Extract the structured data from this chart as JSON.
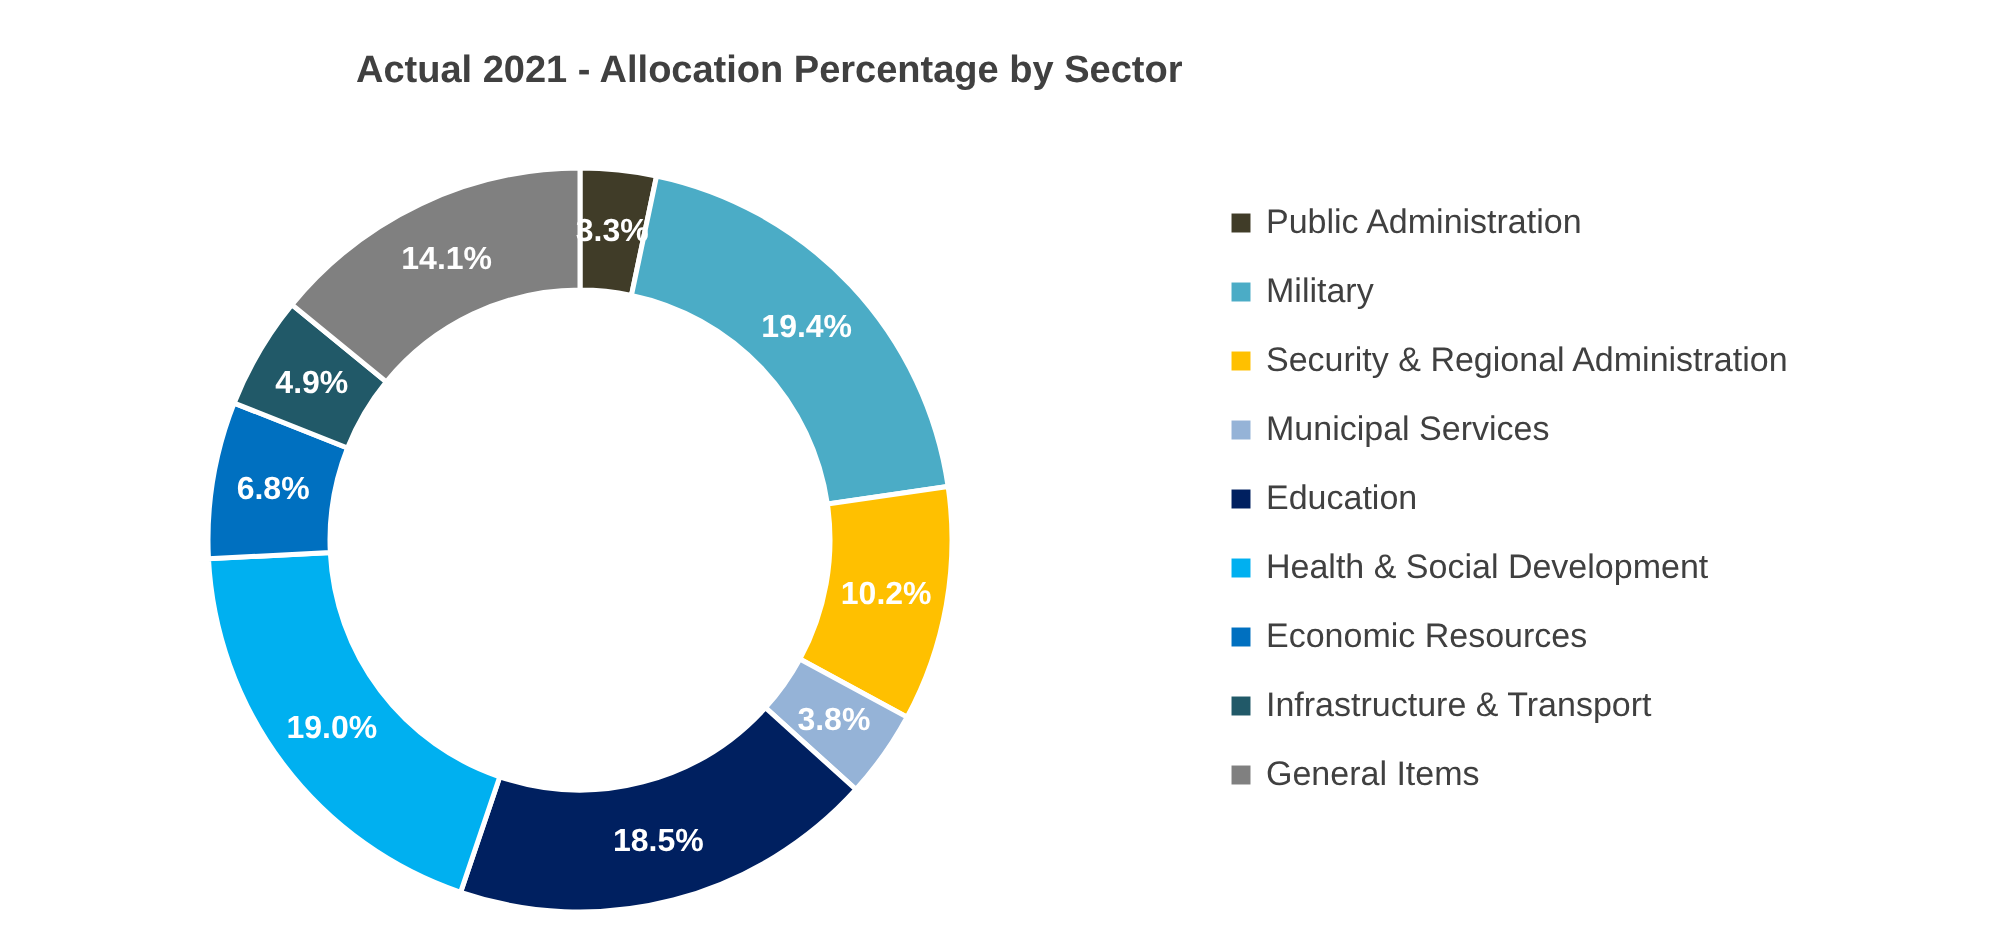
{
  "chart_data": {
    "type": "donut",
    "title": "Actual 2021 - Allocation Percentage by Sector",
    "categories": [
      "Public Administration",
      "Military",
      "Security & Regional Administration",
      "Municipal Services",
      "Education",
      "Health & Social Development",
      "Economic Resources",
      "Infrastructure & Transport",
      "General Items"
    ],
    "values": [
      3.3,
      19.4,
      10.2,
      3.8,
      18.5,
      19.0,
      6.8,
      4.9,
      14.1
    ],
    "value_labels": [
      "3.3%",
      "19.4%",
      "10.2%",
      "3.8%",
      "18.5%",
      "19.0%",
      "6.8%",
      "4.9%",
      "14.1%"
    ],
    "colors": [
      "#403c28",
      "#4bacc6",
      "#ffc000",
      "#95b3d7",
      "#002060",
      "#00b0f0",
      "#0070c0",
      "#215968",
      "#808080"
    ],
    "legend": "right"
  }
}
